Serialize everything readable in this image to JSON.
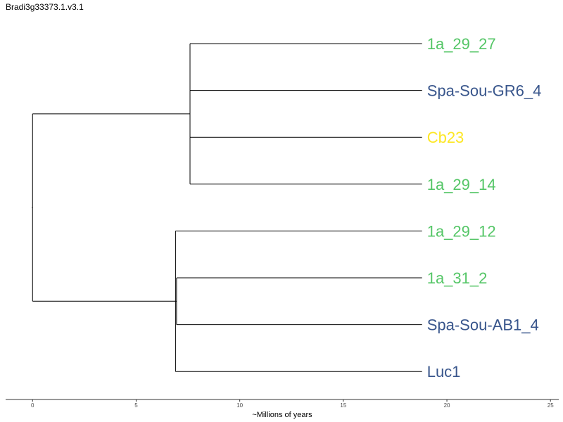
{
  "title": "Bradi3g33373.1.v3.1",
  "colors": {
    "green": "#55c667",
    "blue": "#39568c",
    "yellow": "#fde725",
    "line": "#000000"
  },
  "chart_data": {
    "type": "dendrogram",
    "xlabel": "~Millions of years",
    "xlim": [
      -1.3,
      25.4
    ],
    "x_ticks": [
      0,
      5,
      10,
      15,
      20,
      25
    ],
    "tips": [
      {
        "label": "1a_29_27",
        "color": "#55c667"
      },
      {
        "label": "Spa-Sou-GR6_4",
        "color": "#39568c"
      },
      {
        "label": "Cb23",
        "color": "#fde725"
      },
      {
        "label": "1a_29_14",
        "color": "#55c667"
      },
      {
        "label": "1a_29_12",
        "color": "#55c667"
      },
      {
        "label": "1a_31_2",
        "color": "#55c667"
      },
      {
        "label": "Spa-Sou-AB1_4",
        "color": "#39568c"
      },
      {
        "label": "Luc1",
        "color": "#39568c"
      }
    ],
    "tip_depth": 18.8,
    "nodes": [
      {
        "id": "root",
        "depth": 0,
        "children": [
          "cladeA",
          "cladeB"
        ]
      },
      {
        "id": "cladeA",
        "depth": 7.6,
        "children": [
          "tip0",
          "tip1",
          "tip2",
          "tip3"
        ]
      },
      {
        "id": "cladeB",
        "depth": 6.9,
        "children": [
          "tip4",
          "inner",
          "tip7"
        ]
      },
      {
        "id": "inner",
        "depth": 6.95,
        "children": [
          "tip5",
          "tip6"
        ]
      }
    ]
  }
}
